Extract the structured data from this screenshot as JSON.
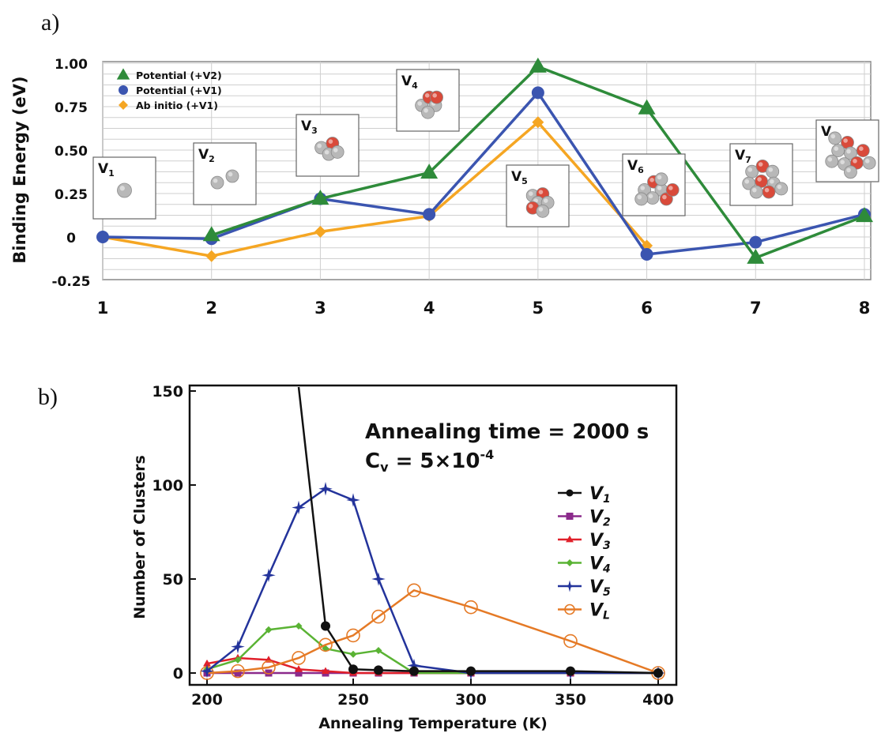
{
  "panel_labels": {
    "a": "a)",
    "b": "b)"
  },
  "chart_data": [
    {
      "type": "line",
      "ylabel": "Binding Energy (eV)",
      "xlabel": "",
      "x": [
        1,
        2,
        3,
        4,
        5,
        6,
        7,
        8
      ],
      "xlim": [
        1,
        8
      ],
      "ylim": [
        -0.25,
        1.0
      ],
      "x_ticks": [
        "1",
        "2",
        "3",
        "4",
        "5",
        "6",
        "7",
        "8"
      ],
      "y_ticks": [
        {
          "value": 1.0,
          "label": "1.00"
        },
        {
          "value": 0.75,
          "label": "0.75"
        },
        {
          "value": 0.5,
          "label": "0.50"
        },
        {
          "value": 0.25,
          "label": "0.25"
        },
        {
          "value": 0.0,
          "label": "0"
        },
        {
          "value": -0.25,
          "label": "-0.25"
        }
      ],
      "grid": true,
      "legend_position": "top-left",
      "series": [
        {
          "name": "Potential (+V2)",
          "color": "#2e8b3a",
          "marker": "triangle",
          "points": [
            [
              2,
              0.01
            ],
            [
              3,
              0.22
            ],
            [
              4,
              0.37
            ],
            [
              5,
              0.98
            ],
            [
              6,
              0.74
            ],
            [
              7,
              -0.12
            ],
            [
              8,
              0.12
            ]
          ]
        },
        {
          "name": "Potential (+V1)",
          "color": "#3b55b0",
          "marker": "circle",
          "points": [
            [
              1,
              0.0
            ],
            [
              2,
              -0.01
            ],
            [
              3,
              0.22
            ],
            [
              4,
              0.13
            ],
            [
              5,
              0.83
            ],
            [
              6,
              -0.1
            ],
            [
              7,
              -0.03
            ],
            [
              8,
              0.13
            ]
          ]
        },
        {
          "name": "Ab initio  (+V1)",
          "color": "#f5a623",
          "marker": "diamond",
          "points": [
            [
              1,
              0.0
            ],
            [
              2,
              -0.11
            ],
            [
              3,
              0.03
            ],
            [
              4,
              0.12
            ],
            [
              5,
              0.66
            ],
            [
              6,
              -0.05
            ]
          ]
        }
      ],
      "cluster_insets": [
        {
          "base": "V",
          "sub": "1",
          "at_x": 1
        },
        {
          "base": "V",
          "sub": "2",
          "at_x": 2
        },
        {
          "base": "V",
          "sub": "3",
          "at_x": 3
        },
        {
          "base": "V",
          "sub": "4",
          "at_x": 4
        },
        {
          "base": "V",
          "sub": "5",
          "at_x": 5
        },
        {
          "base": "V",
          "sub": "6",
          "at_x": 6
        },
        {
          "base": "V",
          "sub": "7",
          "at_x": 7
        },
        {
          "base": "V",
          "sub": "8",
          "at_x": 8
        }
      ]
    },
    {
      "type": "line",
      "xlabel": "Annealing Temperature (K)",
      "ylabel": "Number of Clusters",
      "annotation_line1": "Annealing time = 2000 s",
      "annotation_line2_base": "C",
      "annotation_line2_sub": "v",
      "annotation_line2_rest": " = 5×10",
      "annotation_line2_exp": "-4",
      "x_categories": [
        "200",
        "210",
        "220",
        "230",
        "240",
        "250",
        "260",
        "275",
        "300",
        "350",
        "400"
      ],
      "x_ticks": [
        "200",
        "250",
        "300",
        "350",
        "400"
      ],
      "y_ticks": [
        {
          "value": 0,
          "label": "0"
        },
        {
          "value": 50,
          "label": "50"
        },
        {
          "value": 100,
          "label": "100"
        },
        {
          "value": 150,
          "label": "150"
        }
      ],
      "ylim": [
        -3,
        155
      ],
      "legend_position": "right",
      "series": [
        {
          "base": "V",
          "sub": "1",
          "color": "#111111",
          "marker": "circle",
          "points": [
            [
              "230",
              155
            ],
            [
              "240",
              25
            ],
            [
              "250",
              2
            ],
            [
              "260",
              1.5
            ],
            [
              "275",
              1
            ],
            [
              "300",
              1
            ],
            [
              "350",
              1
            ],
            [
              "400",
              0
            ]
          ]
        },
        {
          "base": "V",
          "sub": "2",
          "color": "#8b2a8b",
          "marker": "square",
          "points": [
            [
              "200",
              0
            ],
            [
              "210",
              0
            ],
            [
              "220",
              0
            ],
            [
              "230",
              0
            ],
            [
              "240",
              0
            ],
            [
              "250",
              0
            ],
            [
              "260",
              0
            ],
            [
              "275",
              0
            ],
            [
              "300",
              0
            ],
            [
              "350",
              0
            ],
            [
              "400",
              0
            ]
          ]
        },
        {
          "base": "V",
          "sub": "3",
          "color": "#e0202a",
          "marker": "triangle",
          "points": [
            [
              "200",
              5
            ],
            [
              "210",
              8
            ],
            [
              "220",
              7
            ],
            [
              "230",
              2
            ],
            [
              "240",
              1
            ],
            [
              "250",
              0
            ],
            [
              "260",
              0
            ],
            [
              "275",
              0
            ],
            [
              "300",
              0
            ],
            [
              "350",
              0
            ],
            [
              "400",
              0
            ]
          ]
        },
        {
          "base": "V",
          "sub": "4",
          "color": "#5ab334",
          "marker": "diamond",
          "points": [
            [
              "200",
              2
            ],
            [
              "210",
              7
            ],
            [
              "220",
              23
            ],
            [
              "230",
              25
            ],
            [
              "240",
              13
            ],
            [
              "250",
              10
            ],
            [
              "260",
              12
            ],
            [
              "275",
              0
            ],
            [
              "300",
              0
            ],
            [
              "350",
              0
            ],
            [
              "400",
              0
            ]
          ]
        },
        {
          "base": "V",
          "sub": "5",
          "color": "#23339b",
          "marker": "star",
          "points": [
            [
              "200",
              1
            ],
            [
              "210",
              14
            ],
            [
              "220",
              52
            ],
            [
              "230",
              88
            ],
            [
              "240",
              98
            ],
            [
              "250",
              92
            ],
            [
              "260",
              50
            ],
            [
              "275",
              4
            ],
            [
              "300",
              0
            ],
            [
              "350",
              0
            ],
            [
              "400",
              0
            ]
          ]
        },
        {
          "base": "V",
          "sub": "L",
          "color": "#e57a26",
          "marker": "open-circle",
          "points": [
            [
              "200",
              0
            ],
            [
              "210",
              1
            ],
            [
              "220",
              3
            ],
            [
              "230",
              8
            ],
            [
              "240",
              15
            ],
            [
              "250",
              20
            ],
            [
              "260",
              30
            ],
            [
              "275",
              44
            ],
            [
              "300",
              35
            ],
            [
              "350",
              17
            ],
            [
              "400",
              0
            ]
          ]
        }
      ]
    }
  ]
}
